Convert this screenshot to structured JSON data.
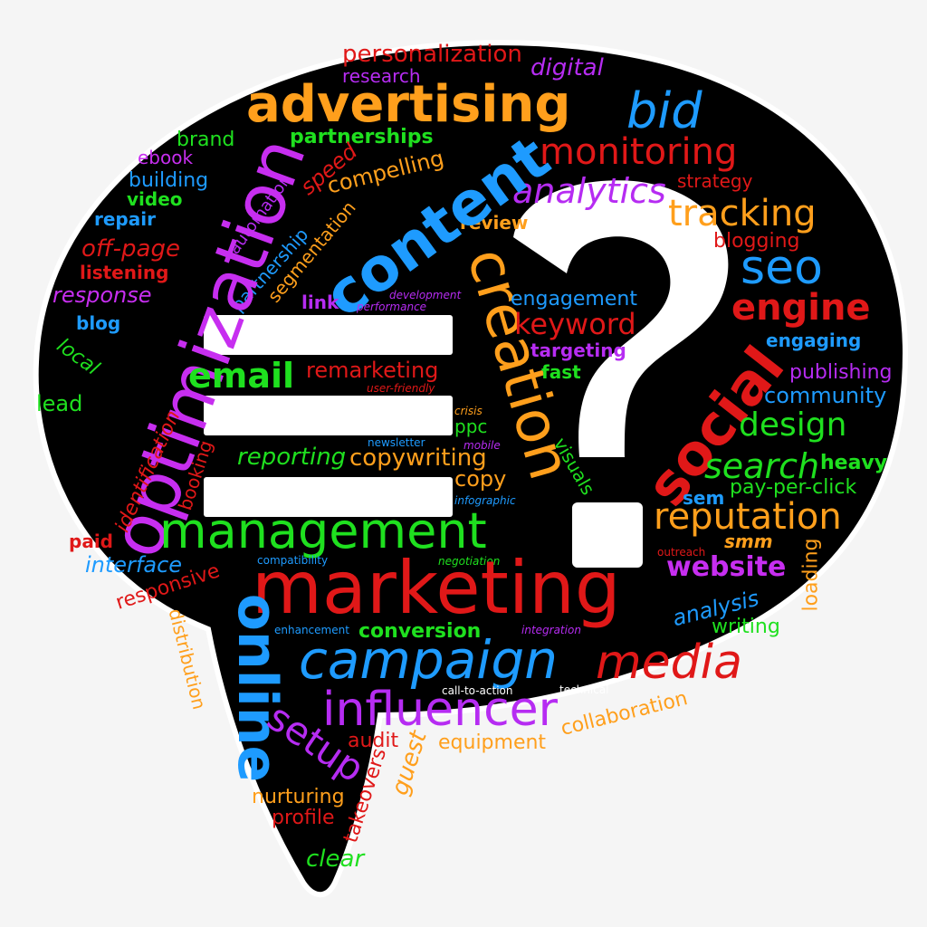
{
  "image": {
    "subject": "speech bubble word cloud with equals sign and question mark",
    "background_color": "#f5f5f5",
    "bubble_color": "#000000",
    "bubble_outline": "#ffffff",
    "symbol_color": "#ffffff"
  },
  "palette": {
    "orange": "#ff9f1c",
    "blue": "#1e9bff",
    "red": "#e01818",
    "green": "#1fe01f",
    "purple": "#b62cf2",
    "magenta": "#c72ef0"
  },
  "words": {
    "personalization": "personalization",
    "research": "research",
    "digital": "digital",
    "advertising": "advertising",
    "bid": "bid",
    "brand": "brand",
    "partnerships": "partnerships",
    "ebook": "ebook",
    "monitoring": "monitoring",
    "building": "building",
    "speed": "speed",
    "compelling": "compelling",
    "analytics": "analytics",
    "strategy": "strategy",
    "video": "video",
    "automation": "automation",
    "tracking": "tracking",
    "repair": "repair",
    "review": "review",
    "content": "content",
    "off_page": "off-page",
    "blogging": "blogging",
    "segmentation": "segmentation",
    "creation": "creation",
    "listening": "listening",
    "seo": "seo",
    "partnership": "partnership",
    "response": "response",
    "optimization": "optimization",
    "link": "link",
    "development": "development",
    "engagement": "engagement",
    "engine": "engine",
    "performance": "performance",
    "blog": "blog",
    "keyword": "keyword",
    "engaging": "engaging",
    "local": "local",
    "targeting": "targeting",
    "email": "email",
    "remarketing": "remarketing",
    "fast": "fast",
    "publishing": "publishing",
    "user_friendly": "user-friendly",
    "community": "community",
    "lead": "lead",
    "crisis": "crisis",
    "ppc": "ppc",
    "design": "design",
    "identification": "identification",
    "newsletter": "newsletter",
    "mobile": "mobile",
    "social": "social",
    "reporting": "reporting",
    "copywriting": "copywriting",
    "search": "search",
    "heavy": "heavy",
    "visuals": "visuals",
    "booking": "booking",
    "copy": "copy",
    "pay_per_click": "pay-per-click",
    "infographic": "infographic",
    "sem": "sem",
    "reputation": "reputation",
    "management": "management",
    "paid": "paid",
    "smm": "smm",
    "outreach": "outreach",
    "interface": "interface",
    "compatibility": "compatibility",
    "negotiation": "negotiation",
    "website": "website",
    "loading": "loading",
    "responsive": "responsive",
    "marketing": "marketing",
    "analysis": "analysis",
    "online": "online",
    "distribution": "distribution",
    "writing": "writing",
    "enhancement": "enhancement",
    "conversion": "conversion",
    "integration": "integration",
    "campaign": "campaign",
    "media": "media",
    "call_to_action": "call-to-action",
    "technical": "technical",
    "influencer": "influencer",
    "collaboration": "collaboration",
    "setup": "setup",
    "audit": "audit",
    "guest": "guest",
    "equipment": "equipment",
    "takeovers": "takeovers",
    "nurturing": "nurturing",
    "profile": "profile",
    "clear": "clear"
  }
}
